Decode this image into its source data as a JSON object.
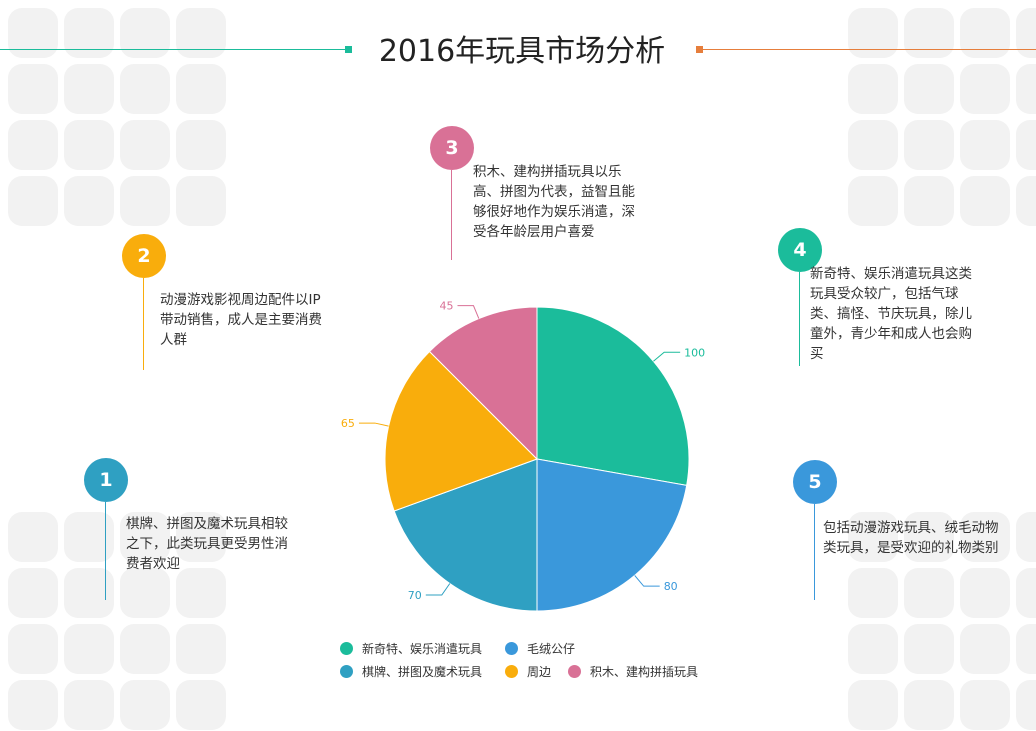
{
  "title": "2016年玩具市场分析",
  "chart_data": {
    "type": "pie",
    "slices": [
      {
        "label": "新奇特、娱乐消遣玩具",
        "value": 100,
        "color": "#1bbc9b"
      },
      {
        "label": "毛绒公仔",
        "value": 80,
        "color": "#3a98db"
      },
      {
        "label": "棋牌、拼图及魔术玩具",
        "value": 70,
        "color": "#2fa0c2"
      },
      {
        "label": "周边",
        "value": 65,
        "color": "#f9ad0c"
      },
      {
        "label": "积木、建构拼插玩具",
        "value": 45,
        "color": "#d97196"
      }
    ],
    "legend_position": "bottom"
  },
  "notes": [
    {
      "num": "1",
      "text": "棋牌、拼图及魔术玩具相较之下，此类玩具更受男性消费者欢迎",
      "color": "#2fa0c2"
    },
    {
      "num": "2",
      "text": "动漫游戏影视周边配件以IP带动销售，成人是主要消费人群",
      "color": "#f9ad0c"
    },
    {
      "num": "3",
      "text": "积木、建构拼插玩具以乐高、拼图为代表，益智且能够很好地作为娱乐消遣，深受各年龄层用户喜爱",
      "color": "#d97196"
    },
    {
      "num": "4",
      "text": "新奇特、娱乐消遣玩具这类玩具受众较广，包括气球类、搞怪、节庆玩具，除儿童外，青少年和成人也会购买",
      "color": "#1bbc9b"
    },
    {
      "num": "5",
      "text": "包括动漫游戏玩具、绒毛动物类玩具，是受欢迎的礼物类别",
      "color": "#3a98db"
    }
  ]
}
